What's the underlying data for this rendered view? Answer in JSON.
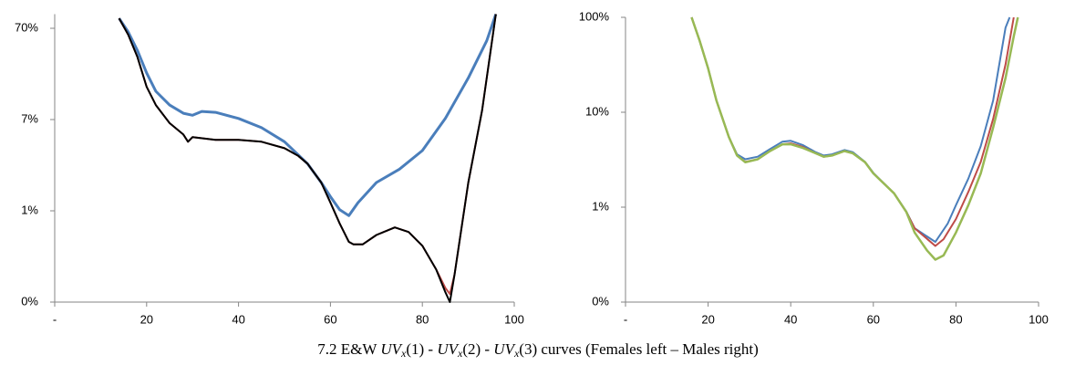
{
  "chart_data": [
    {
      "type": "line",
      "log_y": true,
      "xlim": [
        0,
        100
      ],
      "xticks": [
        {
          "value": 0,
          "label": "-"
        },
        20,
        40,
        60,
        80,
        100
      ],
      "ylim": [
        0.07,
        100
      ],
      "yticks": [
        {
          "value": 0.07,
          "label": "0%"
        },
        {
          "value": 0.7,
          "label": "1%"
        },
        {
          "value": 7,
          "label": "7%"
        },
        {
          "value": 70,
          "label": "70%"
        }
      ],
      "series": [
        {
          "color": "#4a7ebb",
          "width": 3,
          "x": [
            14,
            16,
            18,
            20,
            22,
            25,
            28,
            30,
            32,
            35,
            40,
            45,
            50,
            55,
            58,
            60,
            62,
            64,
            66,
            70,
            75,
            80,
            85,
            90,
            94,
            96
          ],
          "values": [
            90,
            63.8,
            40,
            22.7,
            14.3,
            10.1,
            8.2,
            7.8,
            8.6,
            8.4,
            7.2,
            5.7,
            4.0,
            2.3,
            1.43,
            1.0,
            0.72,
            0.62,
            0.86,
            1.43,
            2.0,
            3.2,
            7.2,
            20,
            51,
            100
          ]
        },
        {
          "color": "#be4b48",
          "width": 2,
          "x": [
            14,
            16,
            18,
            20,
            22,
            25,
            28,
            29,
            30,
            35,
            40,
            45,
            50,
            53,
            55,
            58,
            60,
            62,
            64,
            65,
            67,
            70,
            74,
            77,
            80,
            83,
            85,
            86,
            87,
            90,
            93,
            96
          ],
          "values": [
            90,
            59.6,
            34,
            16,
            10.1,
            6.4,
            4.8,
            4.0,
            4.5,
            4.2,
            4.2,
            4.0,
            3.4,
            2.8,
            2.3,
            1.43,
            0.86,
            0.51,
            0.32,
            0.3,
            0.3,
            0.38,
            0.46,
            0.41,
            0.29,
            0.16,
            0.1,
            0.086,
            0.14,
            1.43,
            8.8,
            100
          ]
        },
        {
          "color": "#000000",
          "width": 2,
          "x": [
            14,
            16,
            18,
            20,
            22,
            25,
            28,
            29,
            30,
            35,
            40,
            45,
            50,
            53,
            55,
            58,
            60,
            62,
            64,
            65,
            67,
            70,
            74,
            77,
            80,
            83,
            85,
            86,
            87,
            90,
            93,
            96
          ],
          "values": [
            90,
            59.6,
            34,
            16,
            10.1,
            6.4,
            4.8,
            4.0,
            4.5,
            4.2,
            4.2,
            4.0,
            3.4,
            2.8,
            2.3,
            1.43,
            0.86,
            0.51,
            0.32,
            0.3,
            0.3,
            0.38,
            0.46,
            0.41,
            0.29,
            0.16,
            0.09,
            0.07,
            0.14,
            1.43,
            8.8,
            100
          ]
        }
      ]
    },
    {
      "type": "line",
      "log_y": true,
      "xlim": [
        0,
        100
      ],
      "xticks": [
        {
          "value": 0,
          "label": "-"
        },
        20,
        40,
        60,
        80,
        100
      ],
      "ylim": [
        0.1,
        100
      ],
      "yticks": [
        {
          "value": 0.1,
          "label": "0%"
        },
        {
          "value": 1,
          "label": "1%"
        },
        {
          "value": 10,
          "label": "10%"
        },
        {
          "value": 100,
          "label": "100%"
        }
      ],
      "series": [
        {
          "color": "#4a7ebb",
          "width": 2,
          "x": [
            16,
            18,
            20,
            22,
            25,
            27,
            29,
            32,
            35,
            38,
            40,
            43,
            46,
            48,
            50,
            53,
            55,
            58,
            60,
            65,
            68,
            70,
            75,
            78,
            80,
            83,
            86,
            89,
            92,
            93
          ],
          "values": [
            100,
            56,
            29,
            13.3,
            5.5,
            3.6,
            3.2,
            3.4,
            4.1,
            4.9,
            5.0,
            4.5,
            3.8,
            3.5,
            3.6,
            4.0,
            3.8,
            3.0,
            2.3,
            1.4,
            0.9,
            0.6,
            0.43,
            0.67,
            1.05,
            2.0,
            4.4,
            13.3,
            78,
            100
          ]
        },
        {
          "color": "#be4b48",
          "width": 2,
          "x": [
            16,
            18,
            20,
            22,
            25,
            27,
            29,
            32,
            35,
            38,
            40,
            43,
            46,
            48,
            50,
            53,
            55,
            58,
            60,
            65,
            68,
            70,
            75,
            77,
            80,
            83,
            86,
            89,
            92,
            94
          ],
          "values": [
            100,
            56,
            29,
            13.3,
            5.5,
            3.5,
            3.0,
            3.2,
            3.9,
            4.6,
            4.7,
            4.3,
            3.7,
            3.4,
            3.5,
            3.9,
            3.7,
            2.97,
            2.27,
            1.4,
            0.89,
            0.6,
            0.39,
            0.46,
            0.75,
            1.45,
            3.0,
            8.5,
            32,
            100
          ]
        },
        {
          "color": "#98b954",
          "width": 2.5,
          "x": [
            16,
            18,
            20,
            22,
            25,
            27,
            29,
            32,
            35,
            38,
            40,
            43,
            46,
            48,
            50,
            53,
            55,
            58,
            60,
            65,
            68,
            70,
            73,
            75,
            77,
            80,
            83,
            86,
            89,
            92,
            94,
            95
          ],
          "values": [
            100,
            56,
            29,
            13.3,
            5.5,
            3.5,
            2.97,
            3.2,
            3.9,
            4.6,
            4.6,
            4.2,
            3.7,
            3.4,
            3.5,
            3.9,
            3.7,
            2.97,
            2.27,
            1.4,
            0.89,
            0.54,
            0.35,
            0.28,
            0.31,
            0.54,
            1.05,
            2.27,
            6.9,
            23,
            63,
            100
          ]
        }
      ]
    }
  ],
  "caption": [
    "7.2 E&W ",
    "UV",
    "x",
    "(1) - ",
    "UV",
    "x",
    "(2) - ",
    "UV",
    "x",
    "(3)",
    " curves (Females left – Males right)"
  ]
}
